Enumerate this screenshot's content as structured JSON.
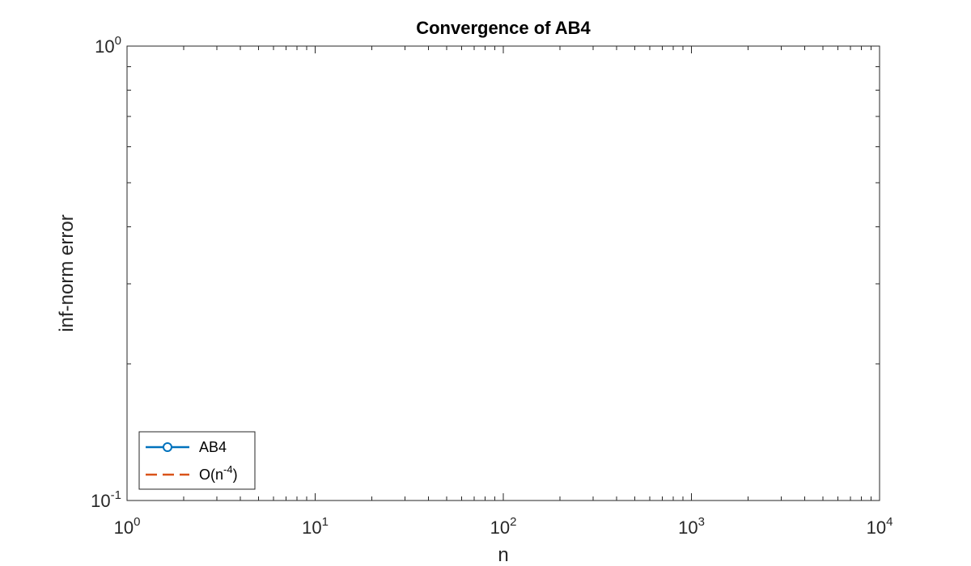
{
  "chart_data": {
    "type": "line",
    "title": "Convergence of AB4",
    "xlabel": "n",
    "ylabel": "inf-norm error",
    "x_scale": "log",
    "y_scale": "log",
    "xlim": [
      1,
      10000
    ],
    "ylim": [
      0.1,
      1
    ],
    "grid": false,
    "legend_location": "bottom-left",
    "x_ticks": [
      {
        "base": "10",
        "exp": "0"
      },
      {
        "base": "10",
        "exp": "1"
      },
      {
        "base": "10",
        "exp": "2"
      },
      {
        "base": "10",
        "exp": "3"
      },
      {
        "base": "10",
        "exp": "4"
      }
    ],
    "y_ticks": [
      {
        "base": "10",
        "exp": "-1"
      },
      {
        "base": "10",
        "exp": "0"
      }
    ],
    "series": [
      {
        "name": "AB4",
        "legend_base": "AB4",
        "legend_exp": "",
        "legend_tail": "",
        "color": "#0072BD",
        "line_style": "solid",
        "marker": "circle",
        "x": [],
        "y": []
      },
      {
        "name": "O(n^-4)",
        "legend_base": "O(n",
        "legend_exp": "-4",
        "legend_tail": ")",
        "color": "#D95319",
        "line_style": "dashed",
        "marker": "none",
        "x": [],
        "y": []
      }
    ]
  }
}
